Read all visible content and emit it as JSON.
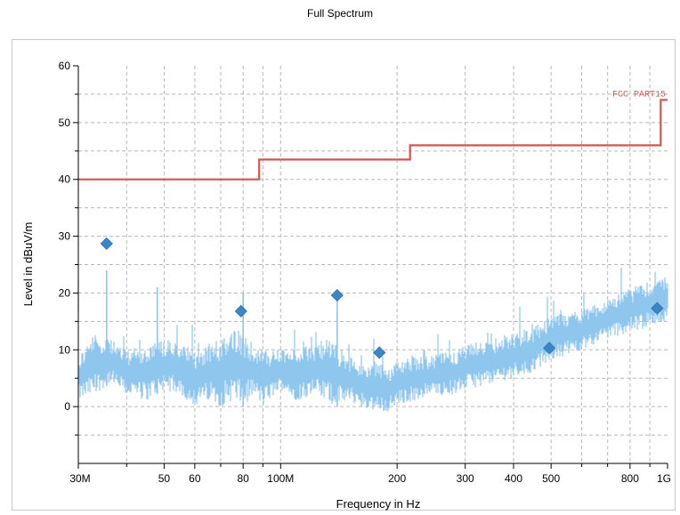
{
  "chart_title": "Full Spectrum",
  "chart_data": {
    "type": "line",
    "title": "Full Spectrum",
    "xlabel": "Frequency in Hz",
    "ylabel": "Level in dBuV/m",
    "x_scale": "log",
    "xlim": [
      30,
      1000
    ],
    "ylim": [
      -10,
      60
    ],
    "grid": true,
    "x_tick_labels": [
      {
        "value": 30,
        "label": "30M"
      },
      {
        "value": 50,
        "label": "50"
      },
      {
        "value": 60,
        "label": "60"
      },
      {
        "value": 80,
        "label": "80"
      },
      {
        "value": 100,
        "label": "100M"
      },
      {
        "value": 200,
        "label": "200"
      },
      {
        "value": 300,
        "label": "300"
      },
      {
        "value": 400,
        "label": "400"
      },
      {
        "value": 500,
        "label": "500"
      },
      {
        "value": 800,
        "label": "800"
      },
      {
        "value": 1000,
        "label": "1G"
      }
    ],
    "x_minor_ticks": [
      40,
      70,
      90,
      600,
      700,
      900
    ],
    "y_ticks": [
      0,
      10,
      20,
      30,
      40,
      50,
      60
    ],
    "y_minor_ticks": [
      -5,
      5,
      15,
      25,
      35,
      45,
      55
    ],
    "series": [
      {
        "name": "FCC PART15",
        "kind": "limit",
        "color": "#d9534f",
        "x": [
          30,
          88,
          88,
          216,
          216,
          960,
          960,
          1000
        ],
        "y": [
          40,
          40,
          43.5,
          43.5,
          46,
          46,
          54,
          54
        ]
      },
      {
        "kind": "spectrum",
        "color": "#8ec6ee",
        "x": [
          30,
          33,
          36,
          40,
          45,
          50,
          55,
          60,
          65,
          70,
          75,
          80,
          85,
          90,
          100,
          110,
          120,
          130,
          140,
          150,
          160,
          175,
          190,
          200,
          220,
          250,
          280,
          300,
          350,
          400,
          450,
          500,
          600,
          700,
          800,
          900,
          1000
        ],
        "y_low": [
          1,
          2,
          4,
          2,
          1,
          3,
          2,
          0,
          1,
          0,
          1,
          0,
          2,
          0,
          3,
          1,
          2,
          1,
          0,
          1,
          0,
          -1,
          -1,
          0,
          1,
          2,
          2,
          3,
          4,
          5,
          6,
          8,
          10,
          12,
          13,
          14,
          15
        ],
        "y_high": [
          9,
          13,
          12,
          10,
          11,
          12,
          11,
          10,
          11,
          12,
          14,
          13,
          11,
          10,
          10,
          10,
          11,
          12,
          11,
          9,
          8,
          8,
          7,
          8,
          9,
          9,
          10,
          11,
          12,
          13,
          14,
          16,
          17,
          19,
          21,
          22,
          23
        ],
        "spikes": [
          {
            "x": 35.5,
            "y": 24
          },
          {
            "x": 48,
            "y": 21
          },
          {
            "x": 80,
            "y": 20
          },
          {
            "x": 140,
            "y": 19
          }
        ]
      },
      {
        "kind": "markers",
        "color": "#3a87c8",
        "x": [
          35.5,
          79,
          140,
          180,
          495,
          940
        ],
        "y": [
          28.7,
          16.8,
          19.6,
          9.5,
          10.3,
          17.3
        ]
      }
    ]
  }
}
